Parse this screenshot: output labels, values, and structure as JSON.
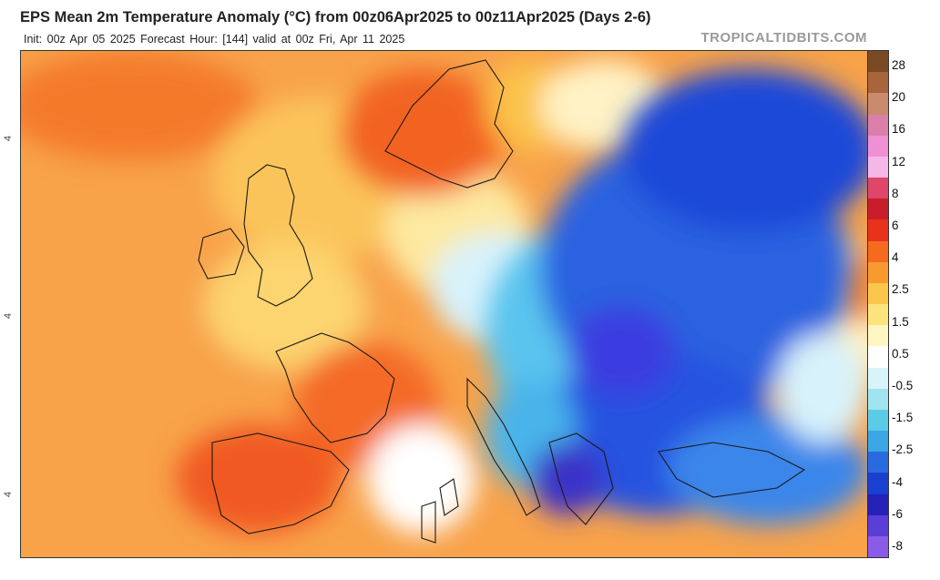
{
  "header": {
    "title": "EPS Mean 2m Temperature Anomaly (°C) from 00z06Apr2025 to 00z11Apr2025 (Days 2-6)",
    "subtitle": "Init: 00z Apr 05 2025   Forecast Hour: [144]   valid at 00z Fri, Apr 11 2025",
    "credit": "TROPICALTIDBITS.COM"
  },
  "map": {
    "variable": "2m temperature anomaly",
    "units": "°C",
    "region": "Europe",
    "lat_tick_text": "4"
  },
  "colorbar": {
    "labels": [
      "28",
      "20",
      "16",
      "12",
      "8",
      "6",
      "4",
      "2.5",
      "1.5",
      "0.5",
      "-0.5",
      "-1.5",
      "-2.5",
      "-4",
      "-6",
      "-8"
    ],
    "colors": [
      "#7a4a24",
      "#a8643a",
      "#c98a6e",
      "#d97faa",
      "#ef8fd4",
      "#f5b8e6",
      "#e0456a",
      "#c81e2a",
      "#e8321c",
      "#f56a1c",
      "#f89a30",
      "#fbc74a",
      "#fde37c",
      "#fff6c4",
      "#ffffff",
      "#d8f4fa",
      "#a0e4f0",
      "#5ccbe8",
      "#3aa6e4",
      "#2a6ae0",
      "#1a40d0",
      "#2420b8",
      "#5a3ed8",
      "#8a5ae8"
    ]
  }
}
